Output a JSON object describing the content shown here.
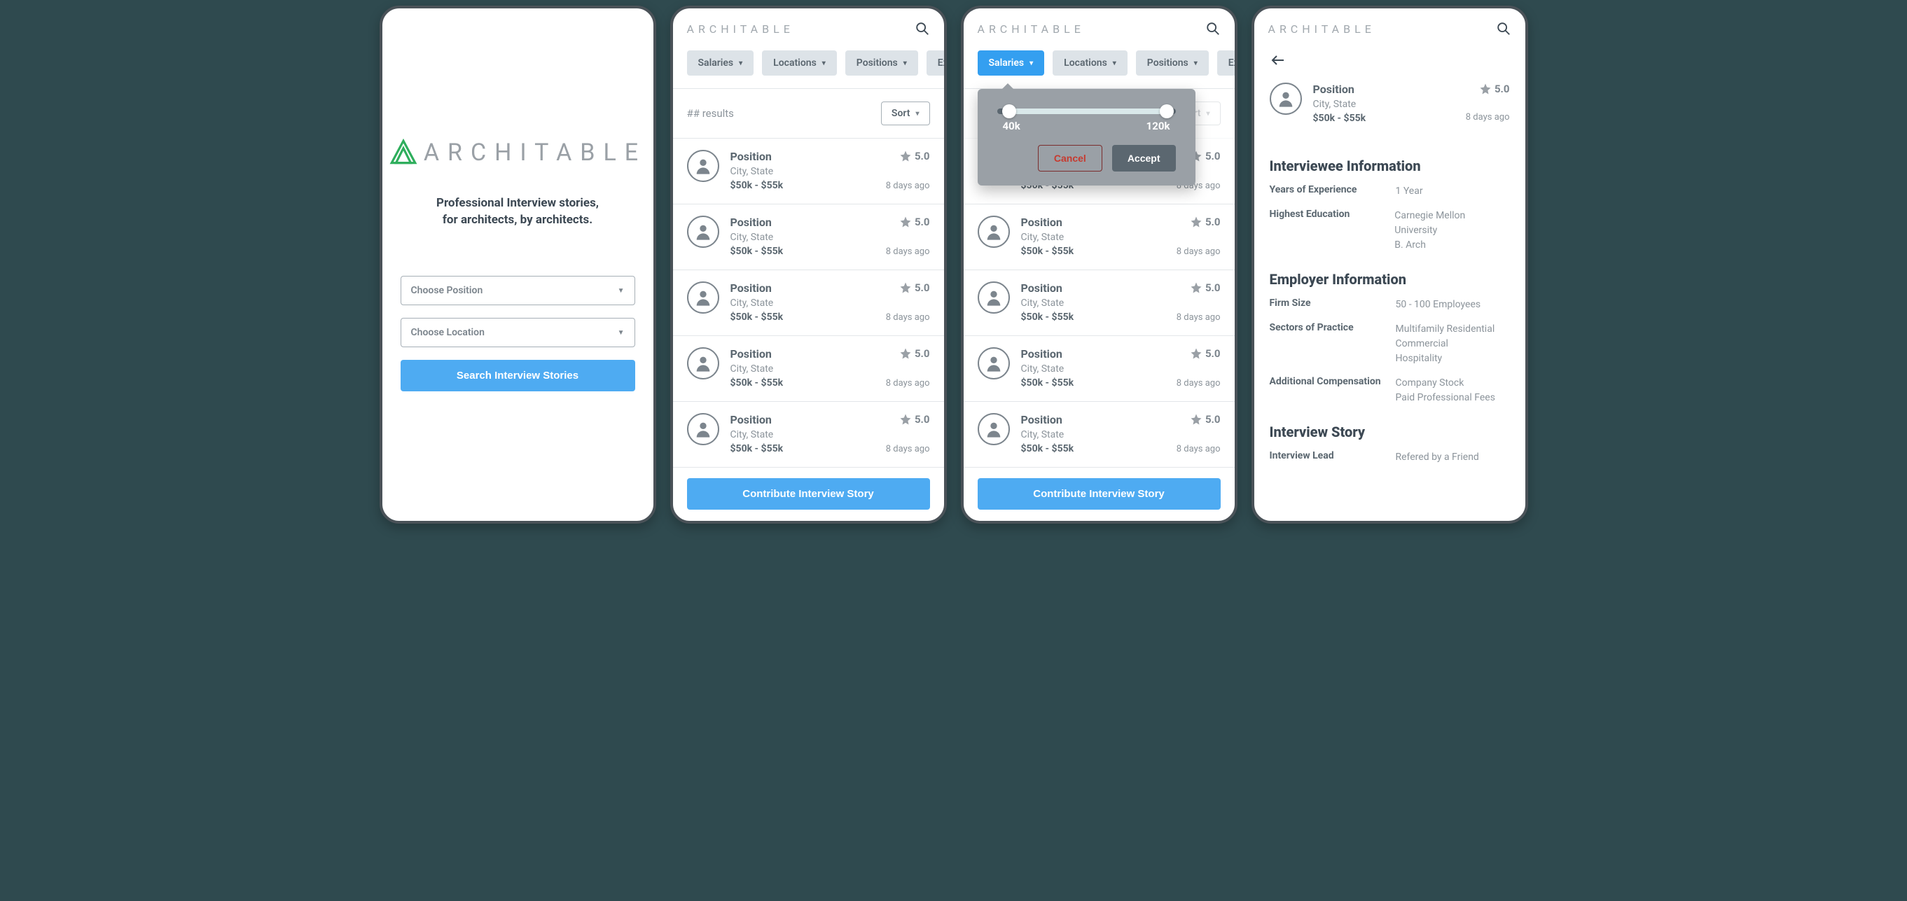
{
  "colors": {
    "accent": "#4eabf2",
    "accent_active": "#349ff0",
    "text_primary": "#3c4853",
    "text_secondary": "#5b6770",
    "text_muted": "#8c949b",
    "chip_bg": "#dde3e8",
    "border": "#a6afb6",
    "popover_bg": "#9aa0a6",
    "logo_green": "#2eae5c"
  },
  "brand": {
    "name": "ARCHITABLE"
  },
  "landing": {
    "tagline_line1": "Professional Interview stories,",
    "tagline_line2": "for architects, by architects.",
    "position_placeholder": "Choose Position",
    "location_placeholder": "Choose Location",
    "search_button": "Search Interview Stories"
  },
  "filters": {
    "chips": [
      {
        "label": "Salaries"
      },
      {
        "label": "Locations"
      },
      {
        "label": "Positions"
      },
      {
        "label": "Ex"
      }
    ]
  },
  "results": {
    "count_label": "## results",
    "sort_label": "Sort",
    "contribute_button": "Contribute Interview Story",
    "items": [
      {
        "position": "Position",
        "location": "City, State",
        "salary": "$50k - $55k",
        "rating": "5.0",
        "time": "8 days ago"
      },
      {
        "position": "Position",
        "location": "City, State",
        "salary": "$50k - $55k",
        "rating": "5.0",
        "time": "8 days ago"
      },
      {
        "position": "Position",
        "location": "City, State",
        "salary": "$50k - $55k",
        "rating": "5.0",
        "time": "8 days ago"
      },
      {
        "position": "Position",
        "location": "City, State",
        "salary": "$50k - $55k",
        "rating": "5.0",
        "time": "8 days ago"
      },
      {
        "position": "Position",
        "location": "City, State",
        "salary": "$50k - $55k",
        "rating": "5.0",
        "time": "8 days ago"
      }
    ]
  },
  "salary_popover": {
    "min_label": "40k",
    "max_label": "120k",
    "min_pct": 6,
    "max_pct": 94,
    "cancel": "Cancel",
    "accept": "Accept"
  },
  "detail": {
    "header": {
      "position": "Position",
      "location": "City, State",
      "salary": "$50k - $55k",
      "rating": "5.0",
      "time": "8 days ago"
    },
    "sections": {
      "interviewee_title": "Interviewee Information",
      "employer_title": "Employer Information",
      "story_title": "Interview Story",
      "years_label": "Years of Experience",
      "years_value": "1 Year",
      "education_label": "Highest Education",
      "education_value": "Carnegie Mellon University\nB. Arch",
      "firm_label": "Firm Size",
      "firm_value": "50 - 100 Employees",
      "sectors_label": "Sectors of Practice",
      "sectors_value": "Multifamily Residential\nCommercial\nHospitality",
      "comp_label": "Additional Compensation",
      "comp_value": "Company Stock\nPaid Professional Fees",
      "lead_label": "Interview Lead",
      "lead_value": "Refered by a Friend"
    }
  }
}
